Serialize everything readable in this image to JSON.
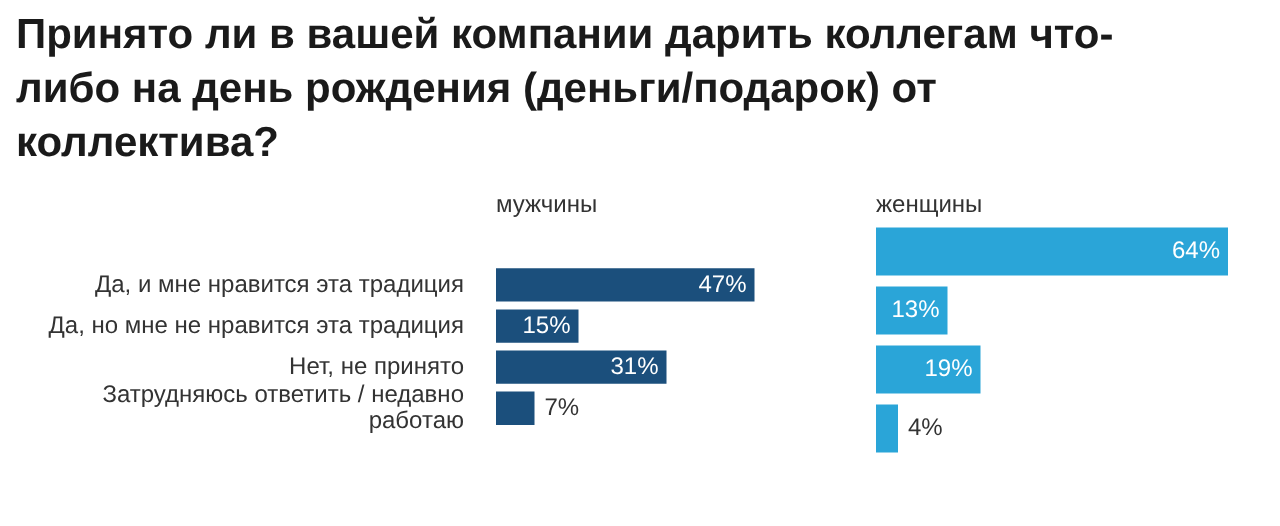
{
  "chart_data": [
    {
      "type": "bar",
      "orientation": "horizontal",
      "title": "Принято ли в вашей компании дарить коллегам что-либо на день рождения (деньги/подарок) от коллектива?",
      "subtitle": "мужчины",
      "categories": [
        "Да, и мне нравится эта традиция",
        "Да, но мне не нравится эта традиция",
        "Нет, не принято",
        "Затрудняюсь ответить / недавно работаю"
      ],
      "values": [
        47,
        15,
        31,
        7
      ],
      "value_labels": [
        "47%",
        "15%",
        "31%",
        "7%"
      ],
      "color": "#1b4f7c",
      "grid": false
    },
    {
      "type": "bar",
      "orientation": "horizontal",
      "subtitle": "женщины",
      "categories": [
        null,
        null,
        null,
        null
      ],
      "values": [
        64,
        13,
        19,
        4
      ],
      "value_labels": [
        "64%",
        "13%",
        "19%",
        "4%"
      ],
      "color": "#2aa5d8",
      "grid": false
    }
  ]
}
